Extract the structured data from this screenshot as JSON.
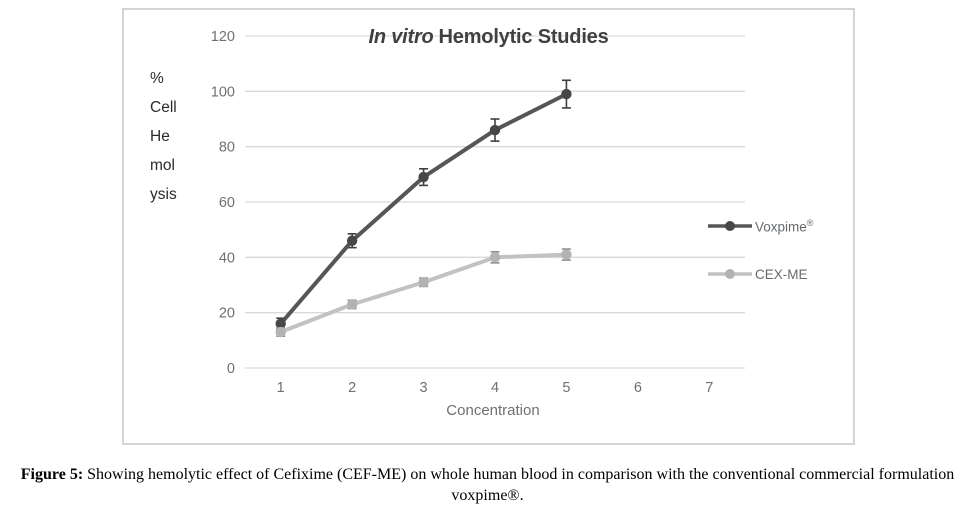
{
  "figure": {
    "caption_label": "Figure 5:",
    "caption_text": "Showing hemolytic effect of Cefixime (CEF-ME) on whole human blood in comparison with the conventional commercial formulation voxpime®."
  },
  "chart_data": {
    "type": "line",
    "title_italic": "In vitro",
    "title_rest": "Hemolytic Studies",
    "ylabel_lines": [
      "%",
      "Cell",
      "He",
      "mol",
      "ysis"
    ],
    "xlabel": "Concentration",
    "x_ticks": [
      "1",
      "2",
      "3",
      "4",
      "5",
      "6",
      "7"
    ],
    "y_ticks": [
      0,
      20,
      40,
      60,
      80,
      100,
      120
    ],
    "ylim": [
      0,
      120
    ],
    "x_categories_count": 7,
    "grid": true,
    "legend_position": "right",
    "x": [
      1,
      2,
      3,
      4,
      5
    ],
    "series": [
      {
        "name": "Voxpime®",
        "values": [
          16,
          46,
          69,
          86,
          99
        ],
        "errors": [
          2,
          2.5,
          3,
          4,
          5
        ],
        "line_color": "#565656",
        "marker_color": "#474747",
        "error_color": "#3f3f3f"
      },
      {
        "name": "CEX-ME",
        "values": [
          13,
          23,
          31,
          40,
          41
        ],
        "errors": [
          1.5,
          1.5,
          1.5,
          2,
          2
        ],
        "line_color": "#c2c2c2",
        "marker_color": "#b3b3b3",
        "error_color": "#8f8f8f"
      }
    ],
    "colors": {
      "gridline": "#d9d9d9",
      "axis_line": "#d9d9d9",
      "tick_label": "#707070",
      "title": "#404040",
      "box_border": "#d4d4d4",
      "ylabel_text": "#2b2b2b"
    }
  }
}
